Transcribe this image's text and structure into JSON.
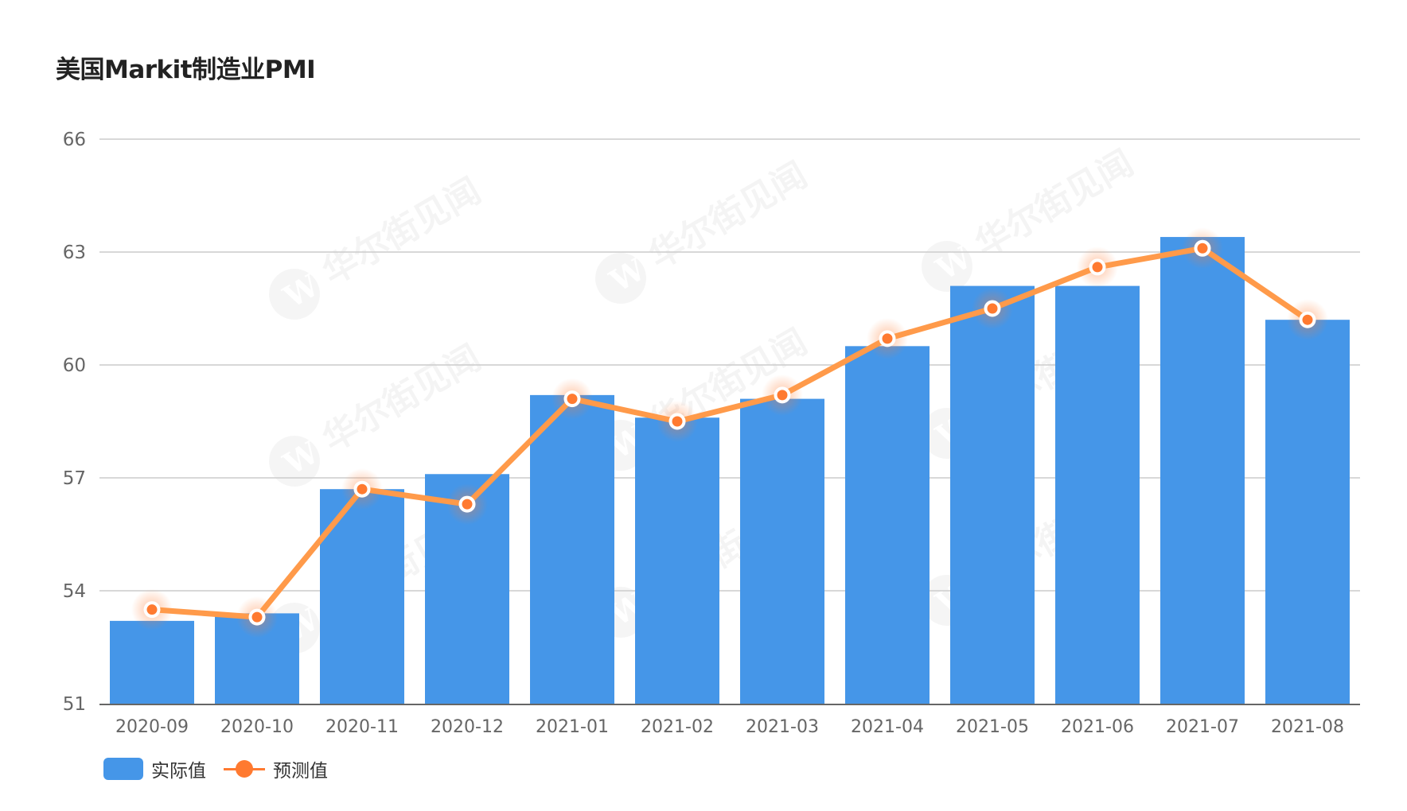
{
  "title": "美国Markit制造业PMI",
  "colors": {
    "bar": "#4596E8",
    "line": "#FF9A4A",
    "marker": "#FF7A30",
    "grid": "#CCCCCC",
    "axis": "#666666"
  },
  "watermark": {
    "text": "华尔街见闻",
    "logo": "W"
  },
  "legend": {
    "items": [
      {
        "label": "实际值",
        "icon": "bar-swatch-icon"
      },
      {
        "label": "预测值",
        "icon": "line-marker-swatch-icon"
      }
    ]
  },
  "chart_data": {
    "type": "bar",
    "title": "美国Markit制造业PMI",
    "xlabel": "",
    "ylabel": "",
    "ylim": [
      51,
      66
    ],
    "yticks": [
      51,
      54,
      57,
      60,
      63,
      66
    ],
    "grid": true,
    "legend_position": "bottom-left",
    "categories": [
      "2020-09",
      "2020-10",
      "2020-11",
      "2020-12",
      "2021-01",
      "2021-02",
      "2021-03",
      "2021-04",
      "2021-05",
      "2021-06",
      "2021-07",
      "2021-08"
    ],
    "series": [
      {
        "name": "实际值",
        "type": "bar",
        "values": [
          53.2,
          53.4,
          56.7,
          57.1,
          59.2,
          58.6,
          59.1,
          60.5,
          62.1,
          62.1,
          63.4,
          61.2
        ]
      },
      {
        "name": "预测值",
        "type": "line",
        "values": [
          53.5,
          53.3,
          56.7,
          56.3,
          59.1,
          58.5,
          59.2,
          60.7,
          61.5,
          62.6,
          63.1,
          61.2
        ]
      }
    ]
  }
}
